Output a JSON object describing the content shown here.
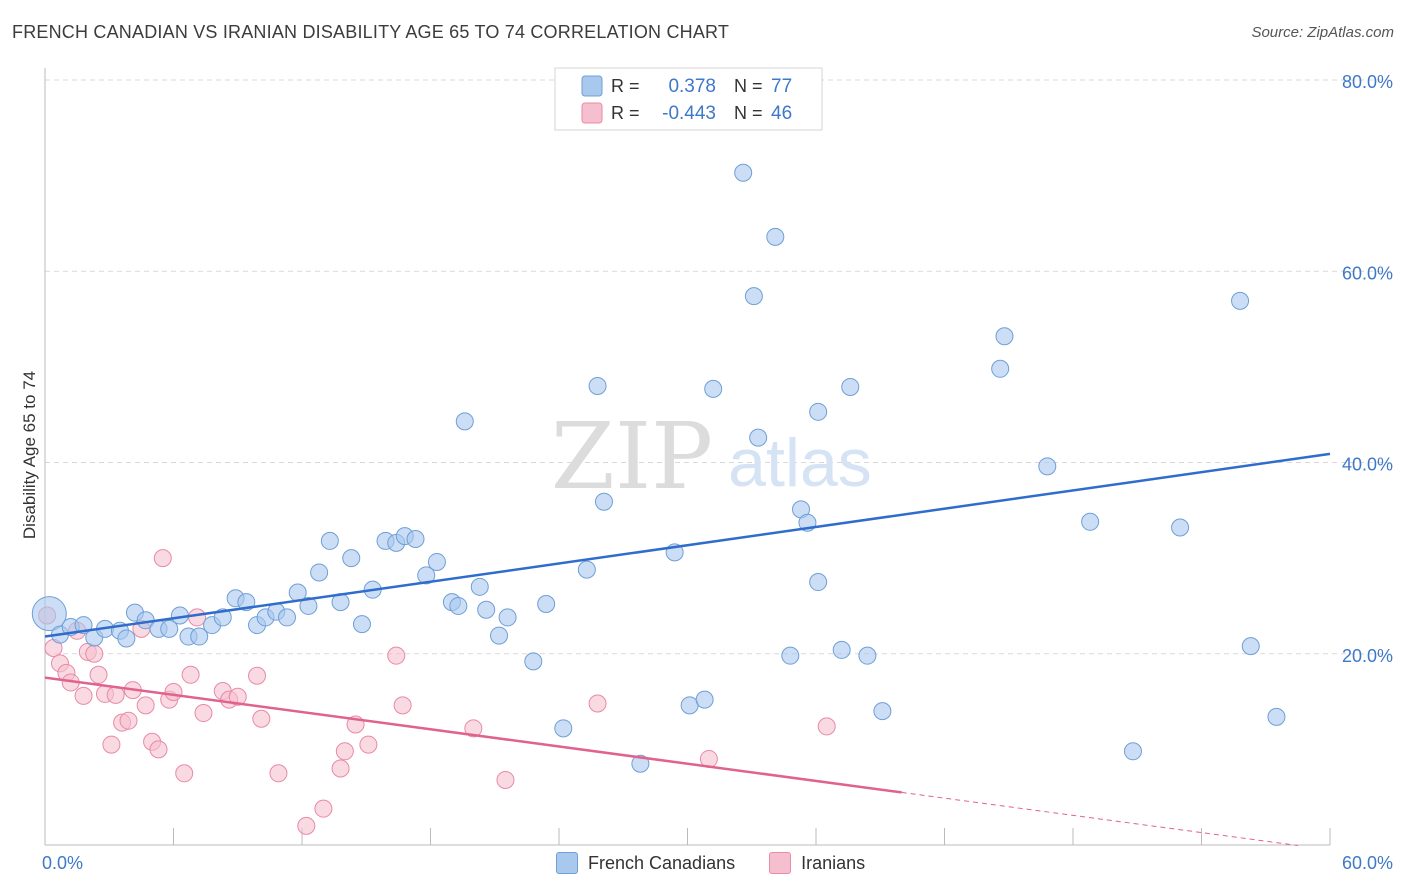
{
  "header": {
    "title": "FRENCH CANADIAN VS IRANIAN DISABILITY AGE 65 TO 74 CORRELATION CHART",
    "source": "Source: ZipAtlas.com"
  },
  "watermark": {
    "zip": "ZIP",
    "atlas": "atlas"
  },
  "legend_top": {
    "rows": [
      {
        "r_label": "R =",
        "r_value": "0.378",
        "n_label": "N =",
        "n_value": "77"
      },
      {
        "r_label": "R =",
        "r_value": "-0.443",
        "n_label": "N =",
        "n_value": "46"
      }
    ]
  },
  "colors": {
    "blue_fill": "#a9c8ee",
    "blue_stroke": "#6f9fd6",
    "blue_line": "#2f6ccc",
    "pink_fill": "#f5bfcf",
    "pink_stroke": "#e98aa7",
    "pink_line": "#e0628e",
    "tick_text": "#3f78c9",
    "grid": "#d9d9d9"
  },
  "chart_data": {
    "type": "scatter",
    "title": "FRENCH CANADIAN VS IRANIAN DISABILITY AGE 65 TO 74 CORRELATION CHART",
    "xlabel": "",
    "ylabel": "Disability Age 65 to 74",
    "xlim": [
      0,
      60
    ],
    "ylim": [
      0,
      80
    ],
    "x_tick_labels": [
      "0.0%",
      "60.0%"
    ],
    "y_tick_labels": [
      "20.0%",
      "40.0%",
      "60.0%",
      "80.0%"
    ],
    "y_ticks": [
      20,
      40,
      60,
      80
    ],
    "grid": true,
    "legend_position": "top-center",
    "series": [
      {
        "name": "French Canadians",
        "color": "#a9c8ee",
        "trend": {
          "x": [
            0,
            60
          ],
          "y": [
            21.8,
            40.9
          ]
        },
        "points": [
          [
            0.2,
            24.2
          ],
          [
            0.7,
            22.0
          ],
          [
            1.2,
            22.8
          ],
          [
            1.8,
            23.0
          ],
          [
            2.3,
            21.7
          ],
          [
            2.8,
            22.6
          ],
          [
            3.5,
            22.4
          ],
          [
            3.8,
            21.6
          ],
          [
            4.2,
            24.3
          ],
          [
            4.7,
            23.5
          ],
          [
            5.3,
            22.6
          ],
          [
            5.8,
            22.6
          ],
          [
            6.3,
            24.0
          ],
          [
            6.7,
            21.8
          ],
          [
            7.2,
            21.8
          ],
          [
            7.8,
            23.0
          ],
          [
            8.3,
            23.8
          ],
          [
            8.9,
            25.8
          ],
          [
            9.4,
            25.4
          ],
          [
            9.9,
            23.0
          ],
          [
            10.3,
            23.8
          ],
          [
            10.8,
            24.4
          ],
          [
            11.3,
            23.8
          ],
          [
            11.8,
            26.4
          ],
          [
            12.3,
            25.0
          ],
          [
            12.8,
            28.5
          ],
          [
            13.3,
            31.8
          ],
          [
            13.8,
            25.4
          ],
          [
            14.3,
            30.0
          ],
          [
            14.8,
            23.1
          ],
          [
            15.3,
            26.7
          ],
          [
            15.9,
            31.8
          ],
          [
            16.4,
            31.6
          ],
          [
            16.8,
            32.3
          ],
          [
            17.3,
            32.0
          ],
          [
            17.8,
            28.2
          ],
          [
            18.3,
            29.6
          ],
          [
            19.0,
            25.4
          ],
          [
            19.3,
            25.0
          ],
          [
            19.6,
            44.3
          ],
          [
            20.3,
            27.0
          ],
          [
            20.6,
            24.6
          ],
          [
            21.2,
            21.9
          ],
          [
            21.6,
            23.8
          ],
          [
            22.8,
            19.2
          ],
          [
            23.4,
            25.2
          ],
          [
            24.2,
            12.2
          ],
          [
            25.3,
            28.8
          ],
          [
            25.8,
            48.0
          ],
          [
            26.1,
            35.9
          ],
          [
            27.8,
            8.5
          ],
          [
            29.4,
            30.6
          ],
          [
            30.1,
            14.6
          ],
          [
            30.8,
            15.2
          ],
          [
            31.2,
            47.7
          ],
          [
            32.6,
            70.3
          ],
          [
            33.1,
            57.4
          ],
          [
            33.3,
            42.6
          ],
          [
            34.1,
            63.6
          ],
          [
            34.8,
            19.8
          ],
          [
            35.3,
            35.1
          ],
          [
            35.6,
            33.7
          ],
          [
            36.1,
            27.5
          ],
          [
            36.1,
            45.3
          ],
          [
            37.2,
            20.4
          ],
          [
            37.6,
            47.9
          ],
          [
            38.4,
            19.8
          ],
          [
            39.1,
            14.0
          ],
          [
            44.6,
            49.8
          ],
          [
            44.8,
            53.2
          ],
          [
            46.8,
            39.6
          ],
          [
            48.8,
            33.8
          ],
          [
            50.8,
            9.8
          ],
          [
            53.0,
            33.2
          ],
          [
            56.3,
            20.8
          ],
          [
            55.8,
            56.9
          ],
          [
            57.5,
            13.4
          ]
        ]
      },
      {
        "name": "Iranians",
        "color": "#f5bfcf",
        "trend": {
          "x": [
            0,
            40
          ],
          "y": [
            17.5,
            5.5
          ]
        },
        "points": [
          [
            0.1,
            24.0
          ],
          [
            0.4,
            20.6
          ],
          [
            0.7,
            19.0
          ],
          [
            1.0,
            18.0
          ],
          [
            1.2,
            17.0
          ],
          [
            1.5,
            22.4
          ],
          [
            1.8,
            15.6
          ],
          [
            2.0,
            20.2
          ],
          [
            2.3,
            20.0
          ],
          [
            2.5,
            17.8
          ],
          [
            2.8,
            15.8
          ],
          [
            3.1,
            10.5
          ],
          [
            3.3,
            15.7
          ],
          [
            3.6,
            12.8
          ],
          [
            3.9,
            13.0
          ],
          [
            4.1,
            16.2
          ],
          [
            4.5,
            22.6
          ],
          [
            4.7,
            14.6
          ],
          [
            5.0,
            10.8
          ],
          [
            5.3,
            10.0
          ],
          [
            5.5,
            30.0
          ],
          [
            5.8,
            15.2
          ],
          [
            6.0,
            16.0
          ],
          [
            6.5,
            7.5
          ],
          [
            6.8,
            17.8
          ],
          [
            7.1,
            23.8
          ],
          [
            7.4,
            13.8
          ],
          [
            8.3,
            16.1
          ],
          [
            8.6,
            15.2
          ],
          [
            9.0,
            15.5
          ],
          [
            9.9,
            17.7
          ],
          [
            10.1,
            13.2
          ],
          [
            10.9,
            7.5
          ],
          [
            12.2,
            2.0
          ],
          [
            13.0,
            3.8
          ],
          [
            13.8,
            8.0
          ],
          [
            14.0,
            9.8
          ],
          [
            14.5,
            12.6
          ],
          [
            15.1,
            10.5
          ],
          [
            16.4,
            19.8
          ],
          [
            16.7,
            14.6
          ],
          [
            20.0,
            12.2
          ],
          [
            21.5,
            6.8
          ],
          [
            25.8,
            14.8
          ],
          [
            31.0,
            9.0
          ],
          [
            36.5,
            12.4
          ]
        ]
      }
    ]
  }
}
